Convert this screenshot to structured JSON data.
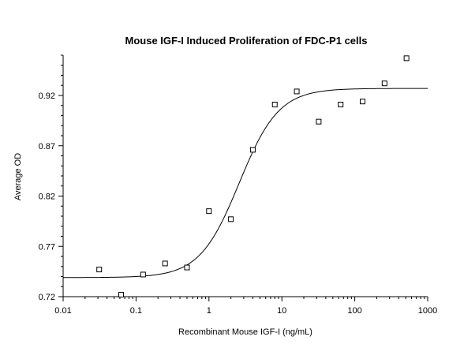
{
  "chart_data": {
    "type": "scatter",
    "title": "Mouse IGF-I Induced Proliferation of FDC-P1 cells",
    "xlabel": "Recombinant Mouse IGF-I (ng/mL)",
    "ylabel": "Average OD",
    "x_scale": "log",
    "xlim": [
      0.01,
      1000
    ],
    "ylim": [
      0.72,
      0.96
    ],
    "x_ticks": [
      0.01,
      0.1,
      1,
      10,
      100,
      1000
    ],
    "x_tick_labels": [
      "0.01",
      "0.1",
      "1",
      "10",
      "100",
      "1000"
    ],
    "y_ticks": [
      0.72,
      0.77,
      0.82,
      0.87,
      0.92
    ],
    "y_tick_labels": [
      "0.72",
      "0.77",
      "0.82",
      "0.87",
      "0.92"
    ],
    "grid": false,
    "legend": "none",
    "points": [
      {
        "x": 0.03125,
        "y": 0.747
      },
      {
        "x": 0.0625,
        "y": 0.722
      },
      {
        "x": 0.125,
        "y": 0.742
      },
      {
        "x": 0.25,
        "y": 0.753
      },
      {
        "x": 0.5,
        "y": 0.749
      },
      {
        "x": 1,
        "y": 0.805
      },
      {
        "x": 2,
        "y": 0.797
      },
      {
        "x": 4,
        "y": 0.866
      },
      {
        "x": 8,
        "y": 0.911
      },
      {
        "x": 16,
        "y": 0.924
      },
      {
        "x": 32,
        "y": 0.894
      },
      {
        "x": 64,
        "y": 0.911
      },
      {
        "x": 128,
        "y": 0.914
      },
      {
        "x": 256,
        "y": 0.932
      },
      {
        "x": 512,
        "y": 0.957
      }
    ],
    "fit_curve": {
      "model": "4PL",
      "bottom": 0.739,
      "top": 0.927,
      "ec50": 2.6,
      "hill": 1.6
    }
  }
}
